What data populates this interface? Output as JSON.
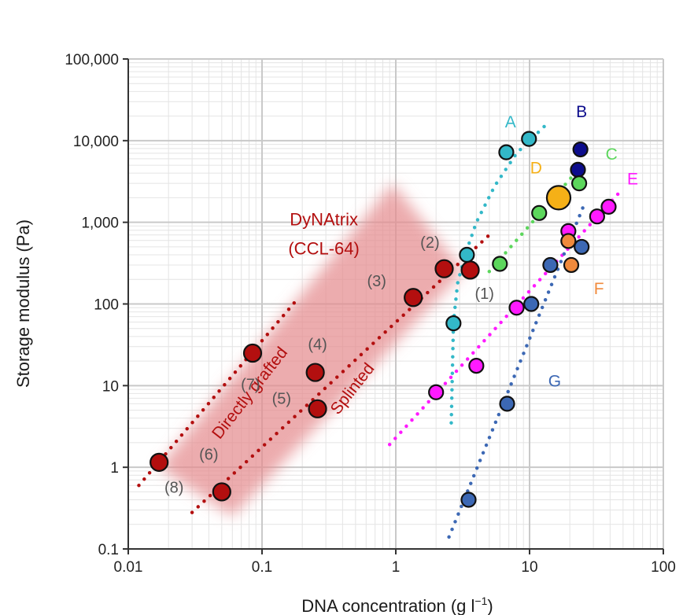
{
  "chart_data": {
    "type": "scatter",
    "x_scale": "log",
    "y_scale": "log",
    "xlabel": "DNA concentration (g l",
    "xlabel_sup": "−1",
    "xlabel_end": ")",
    "ylabel": "Storage modulus (Pa)",
    "xlim": [
      0.01,
      100
    ],
    "ylim": [
      0.1,
      100000
    ],
    "x_ticks": [
      {
        "value": 0.01,
        "label": "0.01"
      },
      {
        "value": 0.1,
        "label": "0.1"
      },
      {
        "value": 1,
        "label": "1"
      },
      {
        "value": 10,
        "label": "10"
      },
      {
        "value": 100,
        "label": "100"
      }
    ],
    "y_ticks": [
      {
        "value": 0.1,
        "label": "0.1"
      },
      {
        "value": 1,
        "label": "1"
      },
      {
        "value": 10,
        "label": "10"
      },
      {
        "value": 100,
        "label": "100"
      },
      {
        "value": 1000,
        "label": "1,000"
      },
      {
        "value": 10000,
        "label": "10,000"
      },
      {
        "value": 100000,
        "label": "100,000"
      }
    ],
    "grid": true,
    "band": {
      "name": "DyNAtrix range",
      "color": "#e58c8f",
      "polygon": [
        [
          0.017,
          1.0
        ],
        [
          0.95,
          3000
        ],
        [
          3.2,
          250
        ],
        [
          0.06,
          0.25
        ]
      ]
    },
    "fit_lines": [
      {
        "name": "directly-grafted",
        "color": "#b30f0f",
        "x": [
          0.012,
          0.18
        ],
        "y": [
          0.6,
          110
        ]
      },
      {
        "name": "splinted",
        "color": "#b30f0f",
        "x": [
          0.03,
          5.0
        ],
        "y": [
          0.28,
          700
        ]
      },
      {
        "name": "A",
        "color": "#33b8c8",
        "x": [
          2.6,
          2.7,
          2.9,
          3.3,
          4.0,
          5.5,
          8.0,
          14.0
        ],
        "y": [
          3.5,
          60,
          180,
          400,
          1000,
          2800,
          7000,
          17000
        ]
      },
      {
        "name": "C",
        "color": "#5cd65c",
        "x": [
          5.0,
          26.0
        ],
        "y": [
          250,
          5500
        ]
      },
      {
        "name": "E",
        "color": "#ff1aff",
        "x": [
          0.9,
          50.0
        ],
        "y": [
          1.9,
          2600
        ]
      },
      {
        "name": "G",
        "color": "#3c68b4",
        "x": [
          2.5,
          25.0
        ],
        "y": [
          0.14,
          1500
        ]
      }
    ],
    "series": [
      {
        "name": "DyNAtrix (CCL-64)",
        "color": "#b30f0f",
        "points": [
          {
            "x": 0.017,
            "y": 1.15,
            "size": 11
          },
          {
            "x": 0.05,
            "y": 0.5,
            "size": 11
          },
          {
            "x": 0.085,
            "y": 25,
            "size": 11
          },
          {
            "x": 0.25,
            "y": 14.5,
            "size": 11
          },
          {
            "x": 0.26,
            "y": 5.2,
            "size": 11
          },
          {
            "x": 1.35,
            "y": 120,
            "size": 11
          },
          {
            "x": 2.3,
            "y": 270,
            "size": 11
          },
          {
            "x": 3.6,
            "y": 260,
            "size": 11
          }
        ]
      },
      {
        "name": "A",
        "color": "#33b8c8",
        "points": [
          {
            "x": 2.7,
            "y": 58,
            "size": 9
          },
          {
            "x": 3.4,
            "y": 400,
            "size": 9
          },
          {
            "x": 6.7,
            "y": 7200,
            "size": 9
          },
          {
            "x": 9.9,
            "y": 10500,
            "size": 9
          }
        ]
      },
      {
        "name": "B",
        "color": "#0c0c8c",
        "points": [
          {
            "x": 23,
            "y": 4400,
            "size": 9
          },
          {
            "x": 24,
            "y": 7800,
            "size": 9
          }
        ]
      },
      {
        "name": "C",
        "color": "#5cd65c",
        "points": [
          {
            "x": 6.0,
            "y": 310,
            "size": 9
          },
          {
            "x": 11.8,
            "y": 1300,
            "size": 9
          },
          {
            "x": 17.5,
            "y": 2000,
            "size": 9
          },
          {
            "x": 23.5,
            "y": 3000,
            "size": 9
          }
        ]
      },
      {
        "name": "D",
        "color": "#f5b017",
        "points": [
          {
            "x": 16.5,
            "y": 2000,
            "size": 15
          }
        ]
      },
      {
        "name": "E",
        "color": "#ff1aff",
        "points": [
          {
            "x": 2.0,
            "y": 8.3,
            "size": 9
          },
          {
            "x": 4.0,
            "y": 17.5,
            "size": 9
          },
          {
            "x": 8.0,
            "y": 90,
            "size": 9
          },
          {
            "x": 19.5,
            "y": 780,
            "size": 9
          },
          {
            "x": 32,
            "y": 1180,
            "size": 9
          },
          {
            "x": 39,
            "y": 1550,
            "size": 9
          }
        ]
      },
      {
        "name": "F",
        "color": "#f08a3c",
        "points": [
          {
            "x": 19.5,
            "y": 590,
            "size": 9
          },
          {
            "x": 20.5,
            "y": 300,
            "size": 9
          }
        ]
      },
      {
        "name": "G",
        "color": "#3c68b4",
        "points": [
          {
            "x": 3.5,
            "y": 0.4,
            "size": 9
          },
          {
            "x": 6.8,
            "y": 6.0,
            "size": 9
          },
          {
            "x": 10.3,
            "y": 100,
            "size": 9
          },
          {
            "x": 14.3,
            "y": 300,
            "size": 9
          },
          {
            "x": 24.5,
            "y": 500,
            "size": 9
          }
        ]
      }
    ],
    "annotations": [
      {
        "text": "A",
        "x": 7.2,
        "y": 16500,
        "color": "#33b8c8",
        "rotate": 0,
        "size": 21
      },
      {
        "text": "B",
        "x": 24.5,
        "y": 22000,
        "color": "#0c0c8c",
        "rotate": 0,
        "size": 21
      },
      {
        "text": "C",
        "x": 41,
        "y": 6600,
        "color": "#5cd65c",
        "rotate": 0,
        "size": 21
      },
      {
        "text": "D",
        "x": 11.2,
        "y": 4500,
        "color": "#f5b017",
        "rotate": 0,
        "size": 21
      },
      {
        "text": "E",
        "x": 59,
        "y": 3300,
        "color": "#ff1aff",
        "rotate": 0,
        "size": 21
      },
      {
        "text": "F",
        "x": 33,
        "y": 150,
        "color": "#f08a3c",
        "rotate": 0,
        "size": 21
      },
      {
        "text": "G",
        "x": 15.4,
        "y": 11,
        "color": "#3c68b4",
        "rotate": 0,
        "size": 21
      },
      {
        "text": "DyNAtrix",
        "x": 0.29,
        "y": 1050,
        "color": "#b30f0f",
        "rotate": 0,
        "size": 22
      },
      {
        "text": "(CCL-64)",
        "x": 0.29,
        "y": 460,
        "color": "#b30f0f",
        "rotate": 0,
        "size": 22
      },
      {
        "text": "Directly grafted",
        "x": 0.082,
        "y": 8,
        "color": "#b30f0f",
        "rotate": -52,
        "size": 21
      },
      {
        "text": "Splinted",
        "x": 0.48,
        "y": 9,
        "color": "#b30f0f",
        "rotate": -52,
        "size": 21
      },
      {
        "text": "(1)",
        "x": 4.6,
        "y": 130,
        "color": "#555555",
        "rotate": 0,
        "size": 20
      },
      {
        "text": "(2)",
        "x": 1.8,
        "y": 550,
        "color": "#555555",
        "rotate": 0,
        "size": 20
      },
      {
        "text": "(3)",
        "x": 0.72,
        "y": 185,
        "color": "#555555",
        "rotate": 0,
        "size": 20
      },
      {
        "text": "(4)",
        "x": 0.26,
        "y": 31,
        "color": "#555555",
        "rotate": 0,
        "size": 20
      },
      {
        "text": "(5)",
        "x": 0.14,
        "y": 6.7,
        "color": "#555555",
        "rotate": 0,
        "size": 20
      },
      {
        "text": "(6)",
        "x": 0.04,
        "y": 1.4,
        "color": "#555555",
        "rotate": 0,
        "size": 20
      },
      {
        "text": "(7)",
        "x": 0.082,
        "y": 10,
        "color": "#555555",
        "rotate": 0,
        "size": 20
      },
      {
        "text": "(8)",
        "x": 0.022,
        "y": 0.55,
        "color": "#555555",
        "rotate": 0,
        "size": 20
      }
    ]
  }
}
